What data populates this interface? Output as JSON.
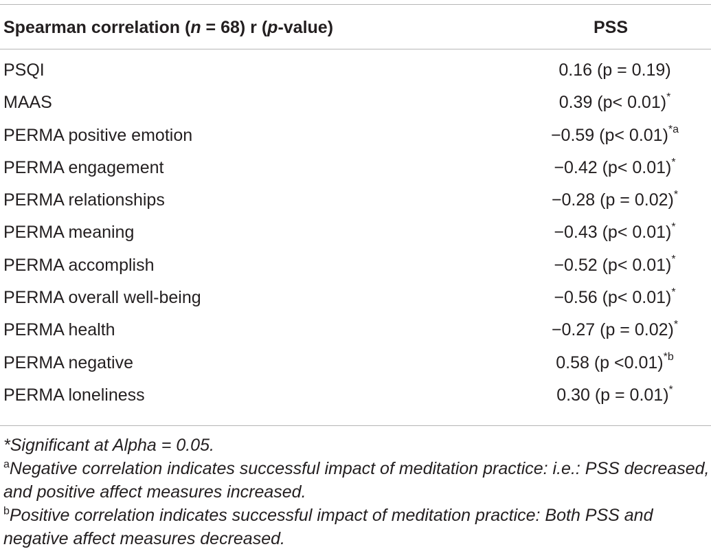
{
  "table": {
    "header": {
      "label_prefix": "Spearman correlation (",
      "label_n": "n",
      "label_mid": " = 68) r (",
      "label_p": "p",
      "label_suffix": "-value)",
      "column": "PSS"
    },
    "rows": [
      {
        "label": "PSQI",
        "value": "0.16 (p = 0.19)",
        "mark": ""
      },
      {
        "label": "MAAS",
        "value": "0.39 (p< 0.01)",
        "mark": "*"
      },
      {
        "label": "PERMA positive emotion",
        "value": "−0.59 (p< 0.01)",
        "mark": "*a"
      },
      {
        "label": "PERMA engagement",
        "value": "−0.42 (p< 0.01)",
        "mark": "*"
      },
      {
        "label": "PERMA relationships",
        "value": "−0.28 (p = 0.02)",
        "mark": "*"
      },
      {
        "label": "PERMA meaning",
        "value": "−0.43 (p< 0.01)",
        "mark": "*"
      },
      {
        "label": "PERMA accomplish",
        "value": "−0.52 (p< 0.01)",
        "mark": "*"
      },
      {
        "label": "PERMA overall well-being",
        "value": "−0.56 (p< 0.01)",
        "mark": "*"
      },
      {
        "label": "PERMA health",
        "value": "−0.27 (p = 0.02)",
        "mark": "*"
      },
      {
        "label": "PERMA negative",
        "value": "0.58 (p <0.01)",
        "mark": "*b"
      },
      {
        "label": "PERMA loneliness",
        "value": "0.30 (p = 0.01)",
        "mark": "*"
      }
    ]
  },
  "notes": {
    "significance": "*Significant at Alpha = 0.05.",
    "note_a_mark": "a",
    "note_a": "Negative correlation indicates successful impact of meditation practice: i.e.: PSS decreased, and positive affect measures increased.",
    "note_b_mark": "b",
    "note_b": "Positive correlation indicates successful impact of meditation practice: Both PSS and negative affect measures decreased."
  }
}
